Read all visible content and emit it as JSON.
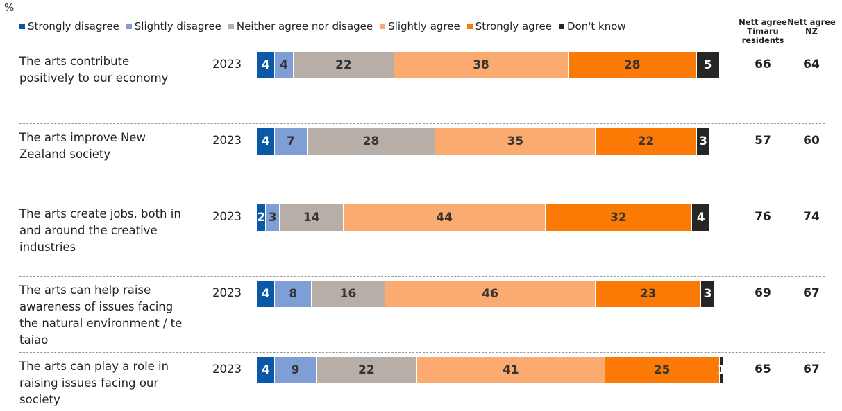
{
  "chart_data": {
    "type": "stacked-bar",
    "title": "%",
    "orientation": "horizontal",
    "period": "2023",
    "categories": [
      "The arts contribute positively to our economy",
      "The arts improve New Zealand society",
      "The arts create jobs, both in and around the creative industries",
      "The arts can help raise awareness of issues facing the natural environment / te taiao",
      "The arts can play a role in raising issues facing our society"
    ],
    "series": [
      {
        "name": "Strongly disagree",
        "color": "#0a58a8",
        "values": [
          4,
          4,
          2,
          4,
          4
        ]
      },
      {
        "name": "Slightly disagree",
        "color": "#7f9ed6",
        "values": [
          4,
          7,
          3,
          8,
          9
        ]
      },
      {
        "name": "Neither agree nor disagee",
        "color": "#b7aea8",
        "values": [
          22,
          28,
          14,
          16,
          22
        ]
      },
      {
        "name": "Slightly agree",
        "color": "#fbab70",
        "values": [
          38,
          35,
          44,
          46,
          41
        ]
      },
      {
        "name": "Strongly agree",
        "color": "#fb7a05",
        "values": [
          28,
          22,
          32,
          23,
          25
        ]
      },
      {
        "name": "Don't know",
        "color": "#262626",
        "values": [
          5,
          3,
          4,
          3,
          1
        ]
      }
    ],
    "nett_agree": [
      {
        "name": "Nett agree Timaru residents",
        "values": [
          66,
          57,
          76,
          69,
          65
        ]
      },
      {
        "name": "Nett agree NZ",
        "values": [
          64,
          60,
          74,
          67,
          67
        ]
      }
    ]
  }
}
